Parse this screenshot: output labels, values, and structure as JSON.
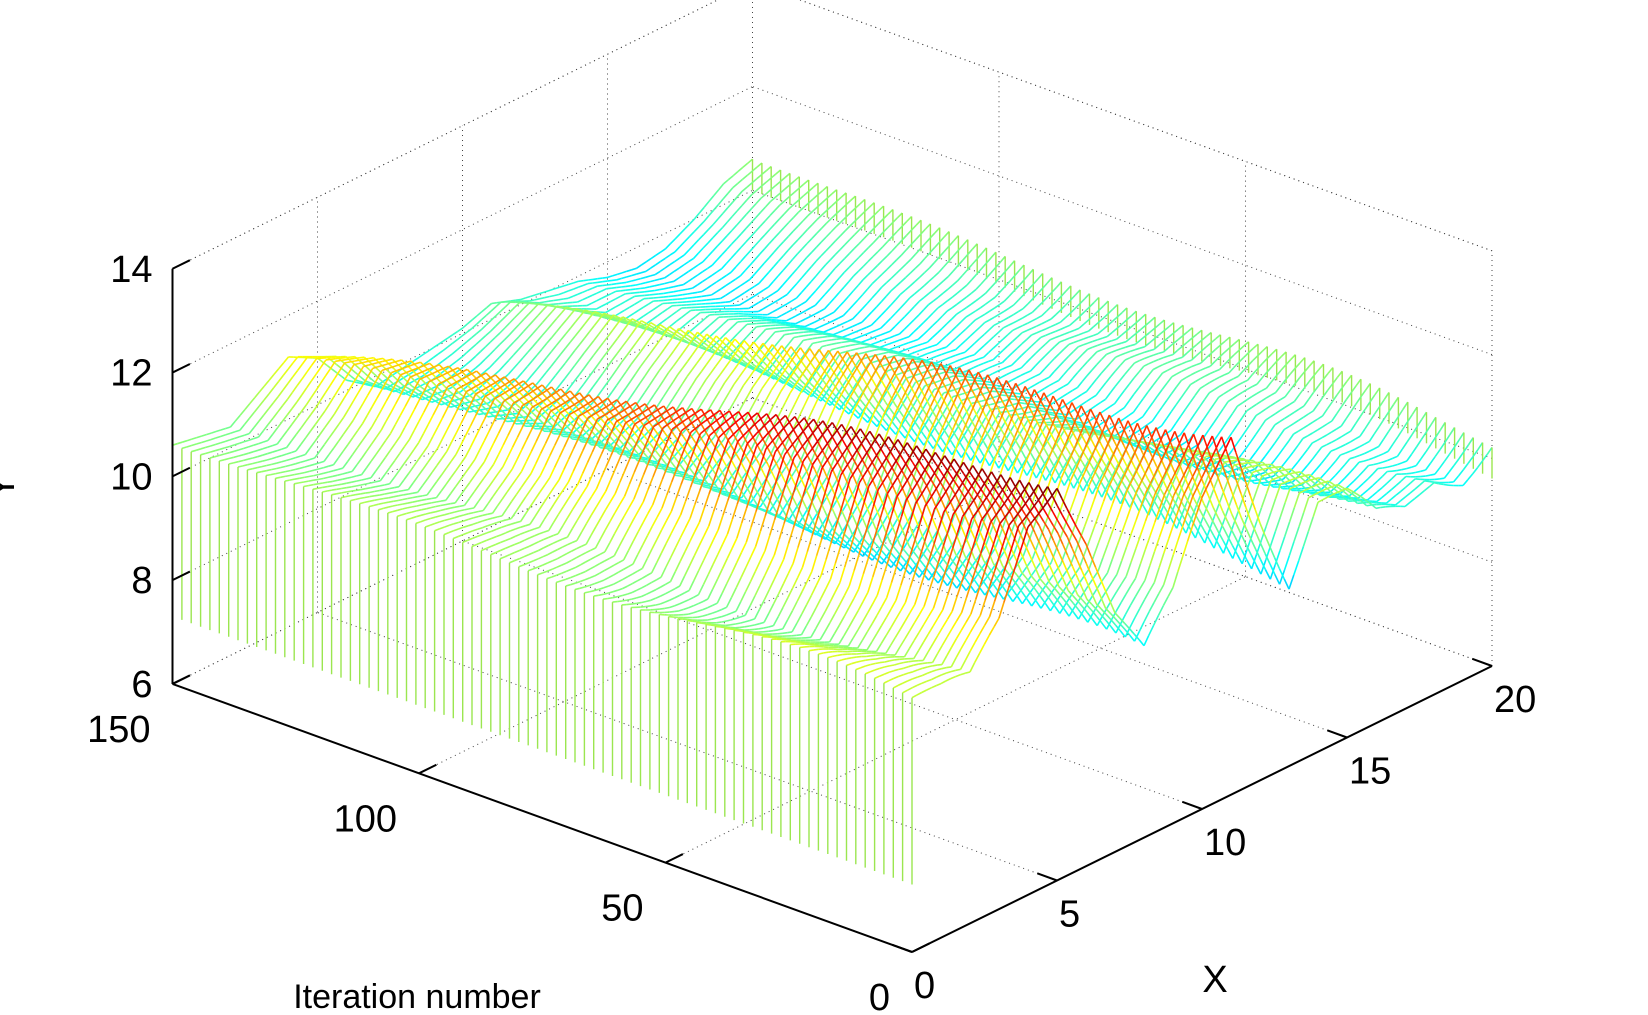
{
  "chart_data": {
    "type": "waterfall",
    "title": "",
    "xlabel": "X",
    "ylabel": "Y",
    "zlabel": "Iteration number",
    "x_range": [
      0,
      20
    ],
    "iteration_range": [
      0,
      150
    ],
    "y_range": [
      6,
      14
    ],
    "x_ticks": [
      "0",
      "5",
      "10",
      "15",
      "20"
    ],
    "iteration_ticks": [
      "0",
      "50",
      "100",
      "150"
    ],
    "y_ticks": [
      "6",
      "8",
      "10",
      "12",
      "14"
    ],
    "grid": true,
    "colormap": "jet",
    "colormap_limits": [
      7.5,
      13.5
    ],
    "curve_count": 80,
    "initial_profile": {
      "x": [
        0,
        1,
        2,
        3,
        4,
        5,
        6,
        7,
        8,
        9,
        10,
        11,
        12,
        13,
        14,
        15,
        16,
        17,
        18,
        19,
        20
      ],
      "y": [
        10.9,
        10.7,
        10.6,
        11.5,
        13.2,
        13.8,
        12.4,
        10.6,
        9.5,
        10.3,
        11.9,
        13.0,
        11.2,
        9.6,
        10.8,
        10.6,
        9.9,
        9.8,
        10.2,
        10.0,
        10.4
      ]
    },
    "final_profile": {
      "x": [
        0,
        1,
        2,
        3,
        4,
        5,
        6,
        7,
        8,
        9,
        10,
        11,
        12,
        13,
        14,
        15,
        16,
        17,
        18,
        19,
        20
      ],
      "y": [
        10.6,
        10.5,
        10.4,
        10.8,
        11.2,
        10.9,
        10.2,
        9.8,
        9.9,
        10.0,
        10.1,
        10.3,
        10.1,
        10.0,
        9.9,
        9.7,
        9.6,
        9.7,
        10.0,
        10.4,
        10.6
      ]
    },
    "stem_base": 7.3
  }
}
